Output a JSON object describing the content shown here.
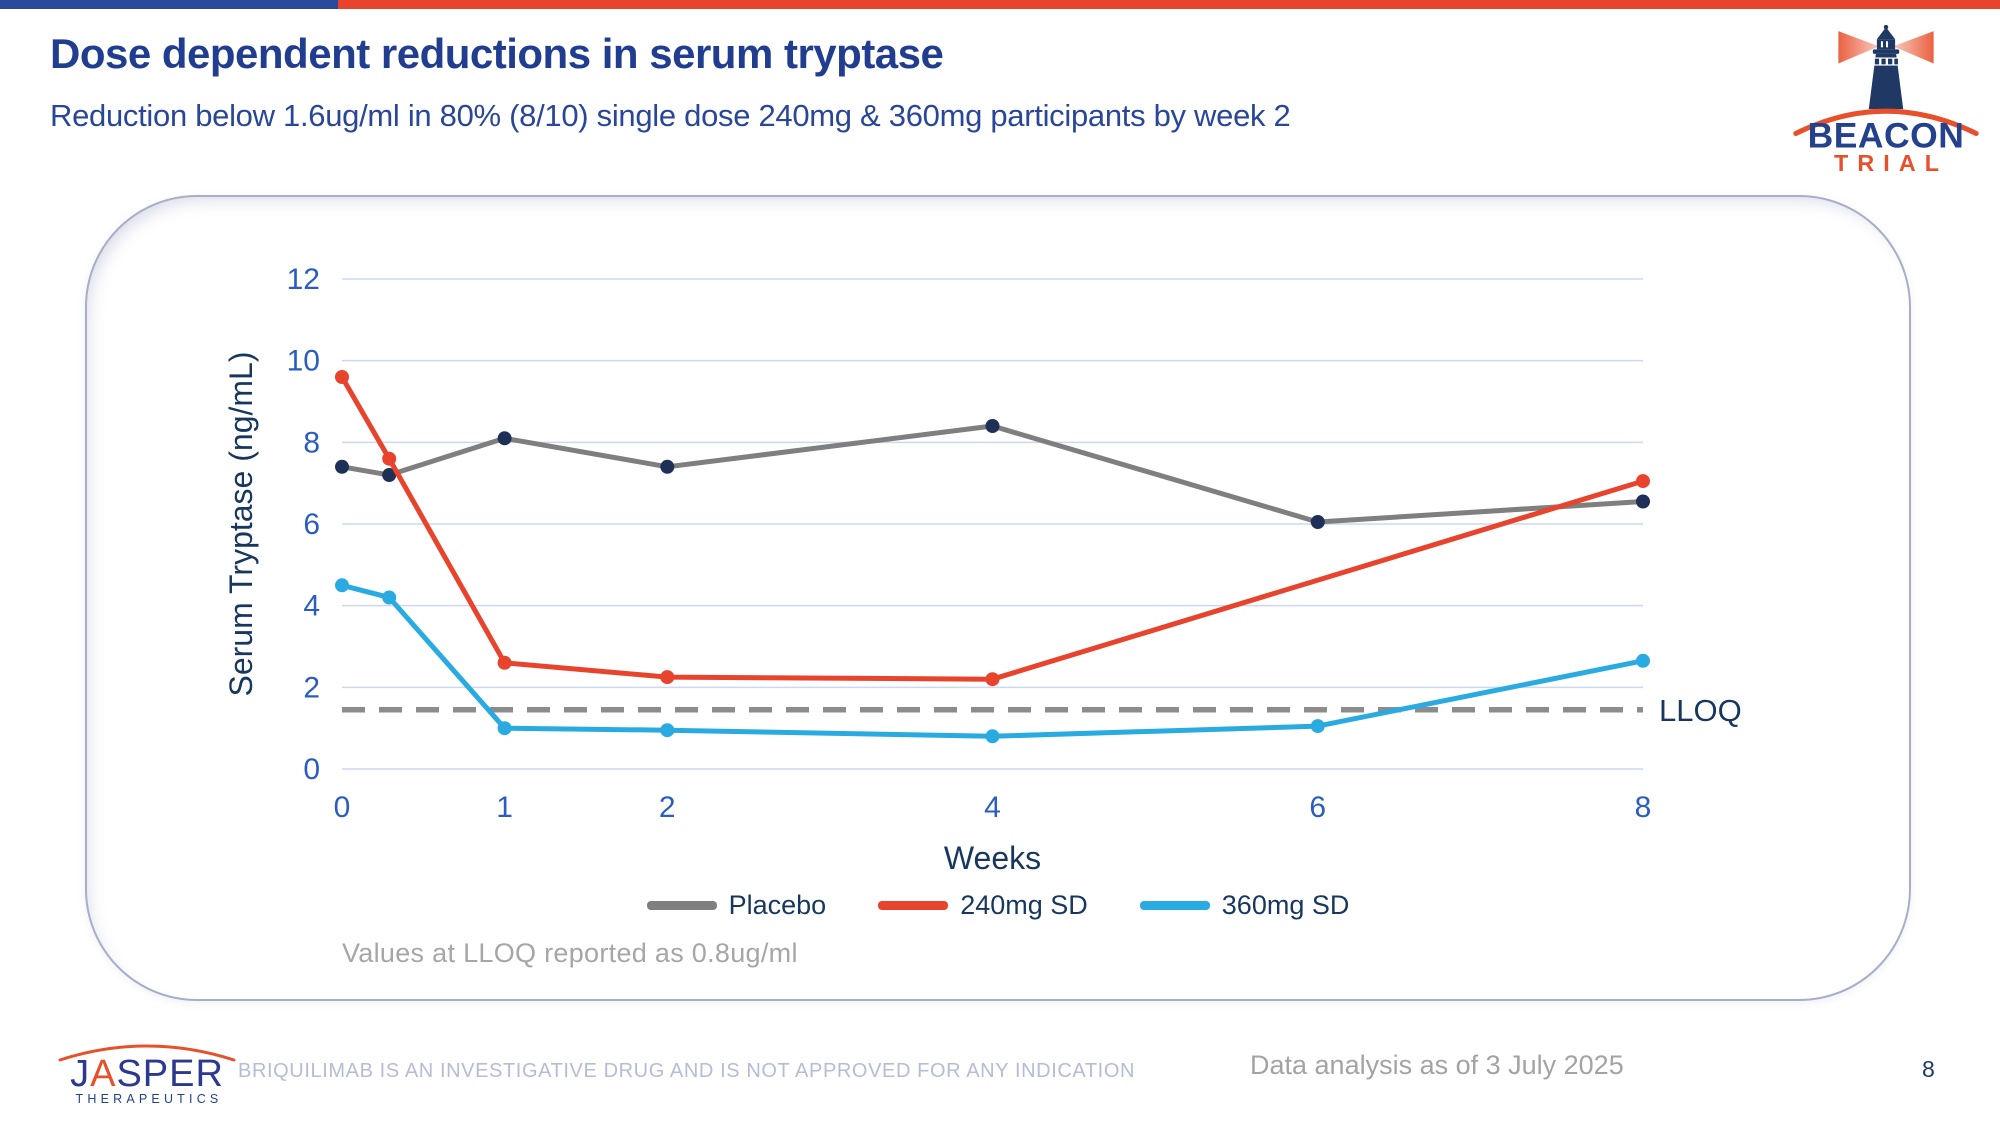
{
  "slide": {
    "title": "Dose dependent reductions in serum tryptase",
    "subtitle": "Reduction below 1.6ug/ml in 80% (8/10) single dose 240mg & 360mg participants by week 2",
    "page_number": "8"
  },
  "colors": {
    "accent_blue": "#2B4A9B",
    "accent_red": "#E8432C",
    "title_blue": "#203D90",
    "navy": "#17375E"
  },
  "beacon_logo": {
    "line1": "BEACON",
    "line2": "TRIAL"
  },
  "jasper_logo": {
    "word_j": "J",
    "word_a": "A",
    "word_sper": "SPER",
    "subtext": "THERAPEUTICS"
  },
  "footer": {
    "disclaimer": "BRIQUILIMAB IS AN INVESTIGATIVE DRUG AND IS NOT APPROVED FOR ANY INDICATION",
    "data_note": "Data analysis as of 3 July 2025"
  },
  "chart_data": {
    "type": "line",
    "xlabel": "Weeks",
    "ylabel": "Serum Tryptase (ng/mL)",
    "xlim": [
      0,
      8
    ],
    "ylim": [
      0,
      12
    ],
    "x_ticks": [
      0,
      1,
      2,
      4,
      6,
      8
    ],
    "y_ticks": [
      0,
      2,
      4,
      6,
      8,
      10,
      12
    ],
    "grid": "horizontal",
    "grid_color": "#CBD8F0",
    "tick_color": "#2B5DC0",
    "axis_title_color": "#17375E",
    "legend_position": "bottom",
    "series": [
      {
        "name": "Placebo",
        "color": "#7F7F7F",
        "marker_color": "#1F3057",
        "x": [
          0,
          0.29,
          1,
          2,
          4,
          6,
          8
        ],
        "values": [
          7.4,
          7.2,
          8.1,
          7.4,
          8.4,
          6.05,
          6.55
        ]
      },
      {
        "name": "240mg SD",
        "color": "#E8432C",
        "marker_color": "#E8432C",
        "x": [
          0,
          0.29,
          1,
          2,
          4,
          8
        ],
        "values": [
          9.6,
          7.6,
          2.6,
          2.25,
          2.2,
          7.05
        ]
      },
      {
        "name": "360mg SD",
        "color": "#29ABE2",
        "marker_color": "#29ABE2",
        "x": [
          0,
          0.29,
          1,
          2,
          4,
          6,
          8
        ],
        "values": [
          4.5,
          4.2,
          1.0,
          0.95,
          0.8,
          1.05,
          2.65
        ]
      }
    ],
    "reference_line": {
      "label": "LLOQ",
      "value": 1.45,
      "color": "#8C8C8C"
    },
    "note": "Values at LLOQ reported as 0.8ug/ml"
  }
}
